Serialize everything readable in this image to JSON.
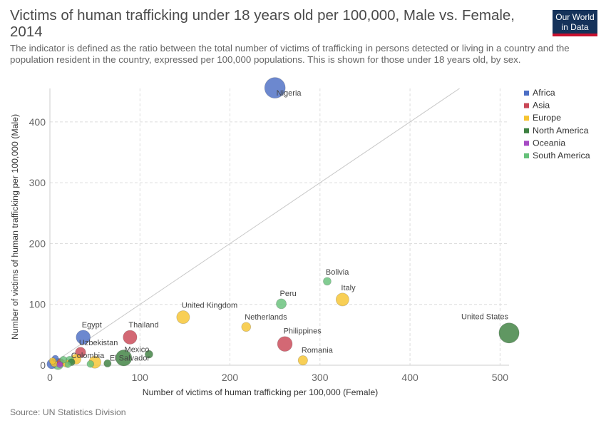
{
  "header": {
    "title": "Victims of human trafficking under 18 years old per 100,000, Male vs. Female, 2014",
    "subtitle": "The indicator is defined as the ratio between the total number of victims of trafficking in persons detected or living in a country and the population resident in the country, expressed per 100,000 populations. This is shown for those under 18 years old, by sex.",
    "logo_line1": "Our World",
    "logo_line2": "in Data"
  },
  "footer": {
    "source": "Source: UN Statistics Division"
  },
  "chart_data": {
    "type": "scatter",
    "xlabel": "Number of victims of human trafficking per 100,000 (Female)",
    "ylabel": "Number of victims of human trafficking per 100,000 (Male)",
    "xlim": [
      0,
      510
    ],
    "ylim": [
      0,
      455
    ],
    "xticks": [
      0,
      100,
      200,
      300,
      400,
      500
    ],
    "yticks": [
      0,
      100,
      200,
      300,
      400
    ],
    "grid": true,
    "diagonal_reference_line": true,
    "legend_placement": "top-right",
    "categories": [
      {
        "name": "Africa",
        "color": "#4c6ec5"
      },
      {
        "name": "Asia",
        "color": "#c94756"
      },
      {
        "name": "Europe",
        "color": "#f6c431"
      },
      {
        "name": "North America",
        "color": "#3d8040"
      },
      {
        "name": "Oceania",
        "color": "#a64ac4"
      },
      {
        "name": "South America",
        "color": "#66c17a"
      }
    ],
    "points": [
      {
        "label": "Nigeria",
        "region": "Africa",
        "x": 250,
        "y": 456,
        "size": 1.0
      },
      {
        "label": "United States",
        "region": "North America",
        "x": 510,
        "y": 53,
        "size": 0.97
      },
      {
        "label": "Egypt",
        "region": "Africa",
        "x": 37,
        "y": 46,
        "size": 0.62
      },
      {
        "label": "Thailand",
        "region": "Asia",
        "x": 89,
        "y": 46,
        "size": 0.6
      },
      {
        "label": "Philippines",
        "region": "Asia",
        "x": 261,
        "y": 35,
        "size": 0.66
      },
      {
        "label": "Mexico",
        "region": "North America",
        "x": 82,
        "y": 12,
        "size": 0.73
      },
      {
        "label": "United Kingdom",
        "region": "Europe",
        "x": 148,
        "y": 79,
        "size": 0.55
      },
      {
        "label": "Italy",
        "region": "Europe",
        "x": 325,
        "y": 108,
        "size": 0.55
      },
      {
        "label": "Peru",
        "region": "South America",
        "x": 257,
        "y": 101,
        "size": 0.38
      },
      {
        "label": "Bolivia",
        "region": "South America",
        "x": 308,
        "y": 138,
        "size": 0.25
      },
      {
        "label": "Netherlands",
        "region": "Europe",
        "x": 218,
        "y": 63,
        "size": 0.33
      },
      {
        "label": "Romania",
        "region": "Europe",
        "x": 281,
        "y": 8,
        "size": 0.35
      },
      {
        "label": "Uzbekistan",
        "region": "Asia",
        "x": 34,
        "y": 21,
        "size": 0.4
      },
      {
        "label": "Colombia",
        "region": "South America",
        "x": 22,
        "y": 8,
        "size": 0.28
      },
      {
        "label": "El Salvador",
        "region": "North America",
        "x": 64,
        "y": 3,
        "size": 0.22
      },
      {
        "label": "",
        "region": "Europe",
        "x": 50,
        "y": 5,
        "size": 0.5
      },
      {
        "label": "",
        "region": "North America",
        "x": 110,
        "y": 18,
        "size": 0.25
      },
      {
        "label": "",
        "region": "Europe",
        "x": 29,
        "y": 10,
        "size": 0.38
      },
      {
        "label": "",
        "region": "South America",
        "x": 9,
        "y": 2,
        "size": 0.45
      },
      {
        "label": "",
        "region": "Africa",
        "x": 2,
        "y": 2,
        "size": 0.35
      },
      {
        "label": "",
        "region": "Europe",
        "x": 5,
        "y": 4,
        "size": 0.25
      },
      {
        "label": "",
        "region": "Asia",
        "x": 12,
        "y": 5,
        "size": 0.22
      },
      {
        "label": "",
        "region": "South America",
        "x": 15,
        "y": 9,
        "size": 0.2
      },
      {
        "label": "",
        "region": "Europe",
        "x": 18,
        "y": 3,
        "size": 0.22
      },
      {
        "label": "",
        "region": "North America",
        "x": 24,
        "y": 5,
        "size": 0.2
      },
      {
        "label": "",
        "region": "Africa",
        "x": 6,
        "y": 11,
        "size": 0.18
      },
      {
        "label": "",
        "region": "South America",
        "x": 45,
        "y": 2,
        "size": 0.2
      },
      {
        "label": "",
        "region": "Europe",
        "x": 3,
        "y": 7,
        "size": 0.18
      },
      {
        "label": "",
        "region": "Oceania",
        "x": 11,
        "y": 1,
        "size": 0.15
      },
      {
        "label": "",
        "region": "South America",
        "x": 20,
        "y": 1,
        "size": 0.15
      }
    ]
  }
}
